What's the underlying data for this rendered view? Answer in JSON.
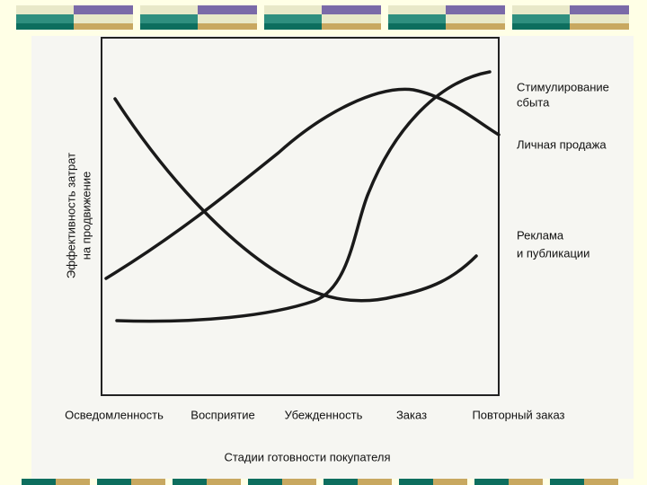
{
  "y_axis_label": [
    "Эффективность затрат",
    "на продвижение"
  ],
  "x_axis_title": "Стадии готовности покупателя",
  "stages": [
    "Осведомленность",
    "Восприятие",
    "Убежденность",
    "Заказ",
    "Повторный заказ"
  ],
  "curve_labels": {
    "sales_promotion": [
      "Стимулирование",
      "сбыта"
    ],
    "personal_selling": [
      "Личная продажа"
    ],
    "advertising": [
      "Реклама",
      "и публикации"
    ]
  }
}
